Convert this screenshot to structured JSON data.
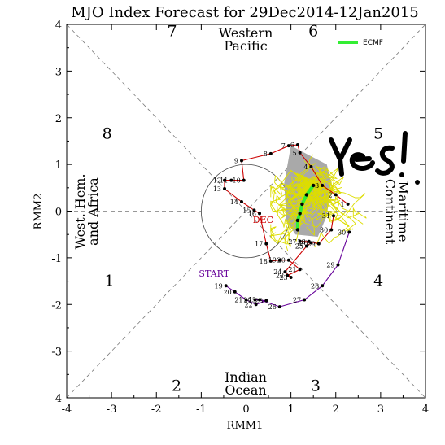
{
  "chart_data": {
    "type": "scatter",
    "title": "MJO Index Forecast for 29Dec2014-12Jan2015",
    "xlabel": "RMM1",
    "ylabel": "RMM2",
    "xlim": [
      -4,
      4
    ],
    "ylim": [
      -4,
      4
    ],
    "xticks": [
      "-4",
      "-3",
      "-2",
      "-1",
      "0",
      "1",
      "2",
      "3",
      "4"
    ],
    "yticks": [
      "-4",
      "-3",
      "-2",
      "-1",
      "0",
      "1",
      "2",
      "3",
      "4"
    ],
    "phases": [
      {
        "label": "1",
        "x": -3.05,
        "y": -1.6
      },
      {
        "label": "2",
        "x": -1.55,
        "y": -3.85
      },
      {
        "label": "3",
        "x": 1.55,
        "y": -3.85
      },
      {
        "label": "4",
        "x": 2.95,
        "y": -1.6
      },
      {
        "label": "5",
        "x": 2.95,
        "y": 1.55
      },
      {
        "label": "6",
        "x": 1.5,
        "y": 3.75
      },
      {
        "label": "7",
        "x": -1.65,
        "y": 3.75
      },
      {
        "label": "8",
        "x": -3.1,
        "y": 1.55
      }
    ],
    "regions": {
      "top": [
        "Western",
        "Pacific"
      ],
      "bottom": [
        "Indian",
        "Ocean"
      ],
      "left": [
        "West. Hem.",
        "and Africa"
      ],
      "right": [
        "Maritime",
        "Continent"
      ]
    },
    "legend": {
      "label": "ECMF",
      "color": "#33ee33",
      "position": "top-right"
    },
    "observed_dec": {
      "name": "DEC",
      "color": "#cc0000",
      "points": [
        {
          "d": "1",
          "x": 2.27,
          "y": 0.15
        },
        {
          "d": "2",
          "x": 2.0,
          "y": 0.35
        },
        {
          "d": "3",
          "x": 1.7,
          "y": 0.55
        },
        {
          "d": "4",
          "x": 1.45,
          "y": 0.95
        },
        {
          "d": "5",
          "x": 1.2,
          "y": 1.25
        },
        {
          "d": "6",
          "x": 1.15,
          "y": 1.42
        },
        {
          "d": "7",
          "x": 0.95,
          "y": 1.4
        },
        {
          "d": "8",
          "x": 0.55,
          "y": 1.23
        },
        {
          "d": "9",
          "x": -0.1,
          "y": 1.08
        },
        {
          "d": "10",
          "x": -0.05,
          "y": 0.66
        },
        {
          "d": "11",
          "x": -0.33,
          "y": 0.66
        },
        {
          "d": "12",
          "x": -0.48,
          "y": 0.66
        },
        {
          "d": "13",
          "x": -0.48,
          "y": 0.48
        },
        {
          "d": "14",
          "x": -0.1,
          "y": 0.2
        },
        {
          "d": "15",
          "x": 0.18,
          "y": 0.02
        },
        {
          "d": "16",
          "x": 0.3,
          "y": -0.05
        },
        {
          "d": "17",
          "x": 0.45,
          "y": -0.7
        },
        {
          "d": "18",
          "x": 0.55,
          "y": -1.07
        },
        {
          "d": "19",
          "x": 0.75,
          "y": -1.05
        },
        {
          "d": "20",
          "x": 0.95,
          "y": -1.05
        },
        {
          "d": "21",
          "x": 1.2,
          "y": -1.25
        },
        {
          "d": "22",
          "x": 0.92,
          "y": -1.38
        },
        {
          "d": "23",
          "x": 1.0,
          "y": -1.42
        },
        {
          "d": "24",
          "x": 0.87,
          "y": -1.3
        },
        {
          "d": "25",
          "x": 1.35,
          "y": -0.75
        },
        {
          "d": "26",
          "x": 1.45,
          "y": -0.68
        },
        {
          "d": "27",
          "x": 1.2,
          "y": -0.65
        },
        {
          "d": "28",
          "x": 1.4,
          "y": -0.65
        },
        {
          "d": "29",
          "x": 1.62,
          "y": -0.7
        },
        {
          "d": "30",
          "x": 1.9,
          "y": -0.4
        },
        {
          "d": "31",
          "x": 1.95,
          "y": -0.1
        }
      ]
    },
    "observed_nov": {
      "start_label": "START",
      "color": "#660099",
      "points": [
        {
          "d": "19",
          "x": -0.45,
          "y": -1.6
        },
        {
          "d": "20",
          "x": -0.25,
          "y": -1.73
        },
        {
          "d": "21",
          "x": 0.0,
          "y": -1.9
        },
        {
          "d": "22",
          "x": 0.22,
          "y": -2.0
        },
        {
          "d": "23",
          "x": 0.45,
          "y": -1.92
        },
        {
          "d": "24",
          "x": 0.2,
          "y": -1.9
        },
        {
          "d": "25",
          "x": 0.3,
          "y": -1.9
        },
        {
          "d": "26",
          "x": 0.75,
          "y": -2.05
        },
        {
          "d": "27",
          "x": 1.3,
          "y": -1.9
        },
        {
          "d": "28",
          "x": 1.7,
          "y": -1.6
        },
        {
          "d": "29",
          "x": 2.05,
          "y": -1.15
        },
        {
          "d": "30",
          "x": 2.3,
          "y": -0.45
        }
      ]
    },
    "ensemble_mean": {
      "name": "ECMF",
      "color": "#33ee33",
      "points": [
        {
          "x": 1.5,
          "y": 0.55
        },
        {
          "x": 1.35,
          "y": 0.35
        },
        {
          "x": 1.25,
          "y": 0.15
        },
        {
          "x": 1.2,
          "y": -0.05
        },
        {
          "x": 1.15,
          "y": -0.2
        },
        {
          "x": 1.15,
          "y": -0.4
        }
      ]
    },
    "ensemble_spread_color": "#dddd00",
    "annotation": {
      "text": "Yes!",
      "style": "handwritten"
    }
  }
}
